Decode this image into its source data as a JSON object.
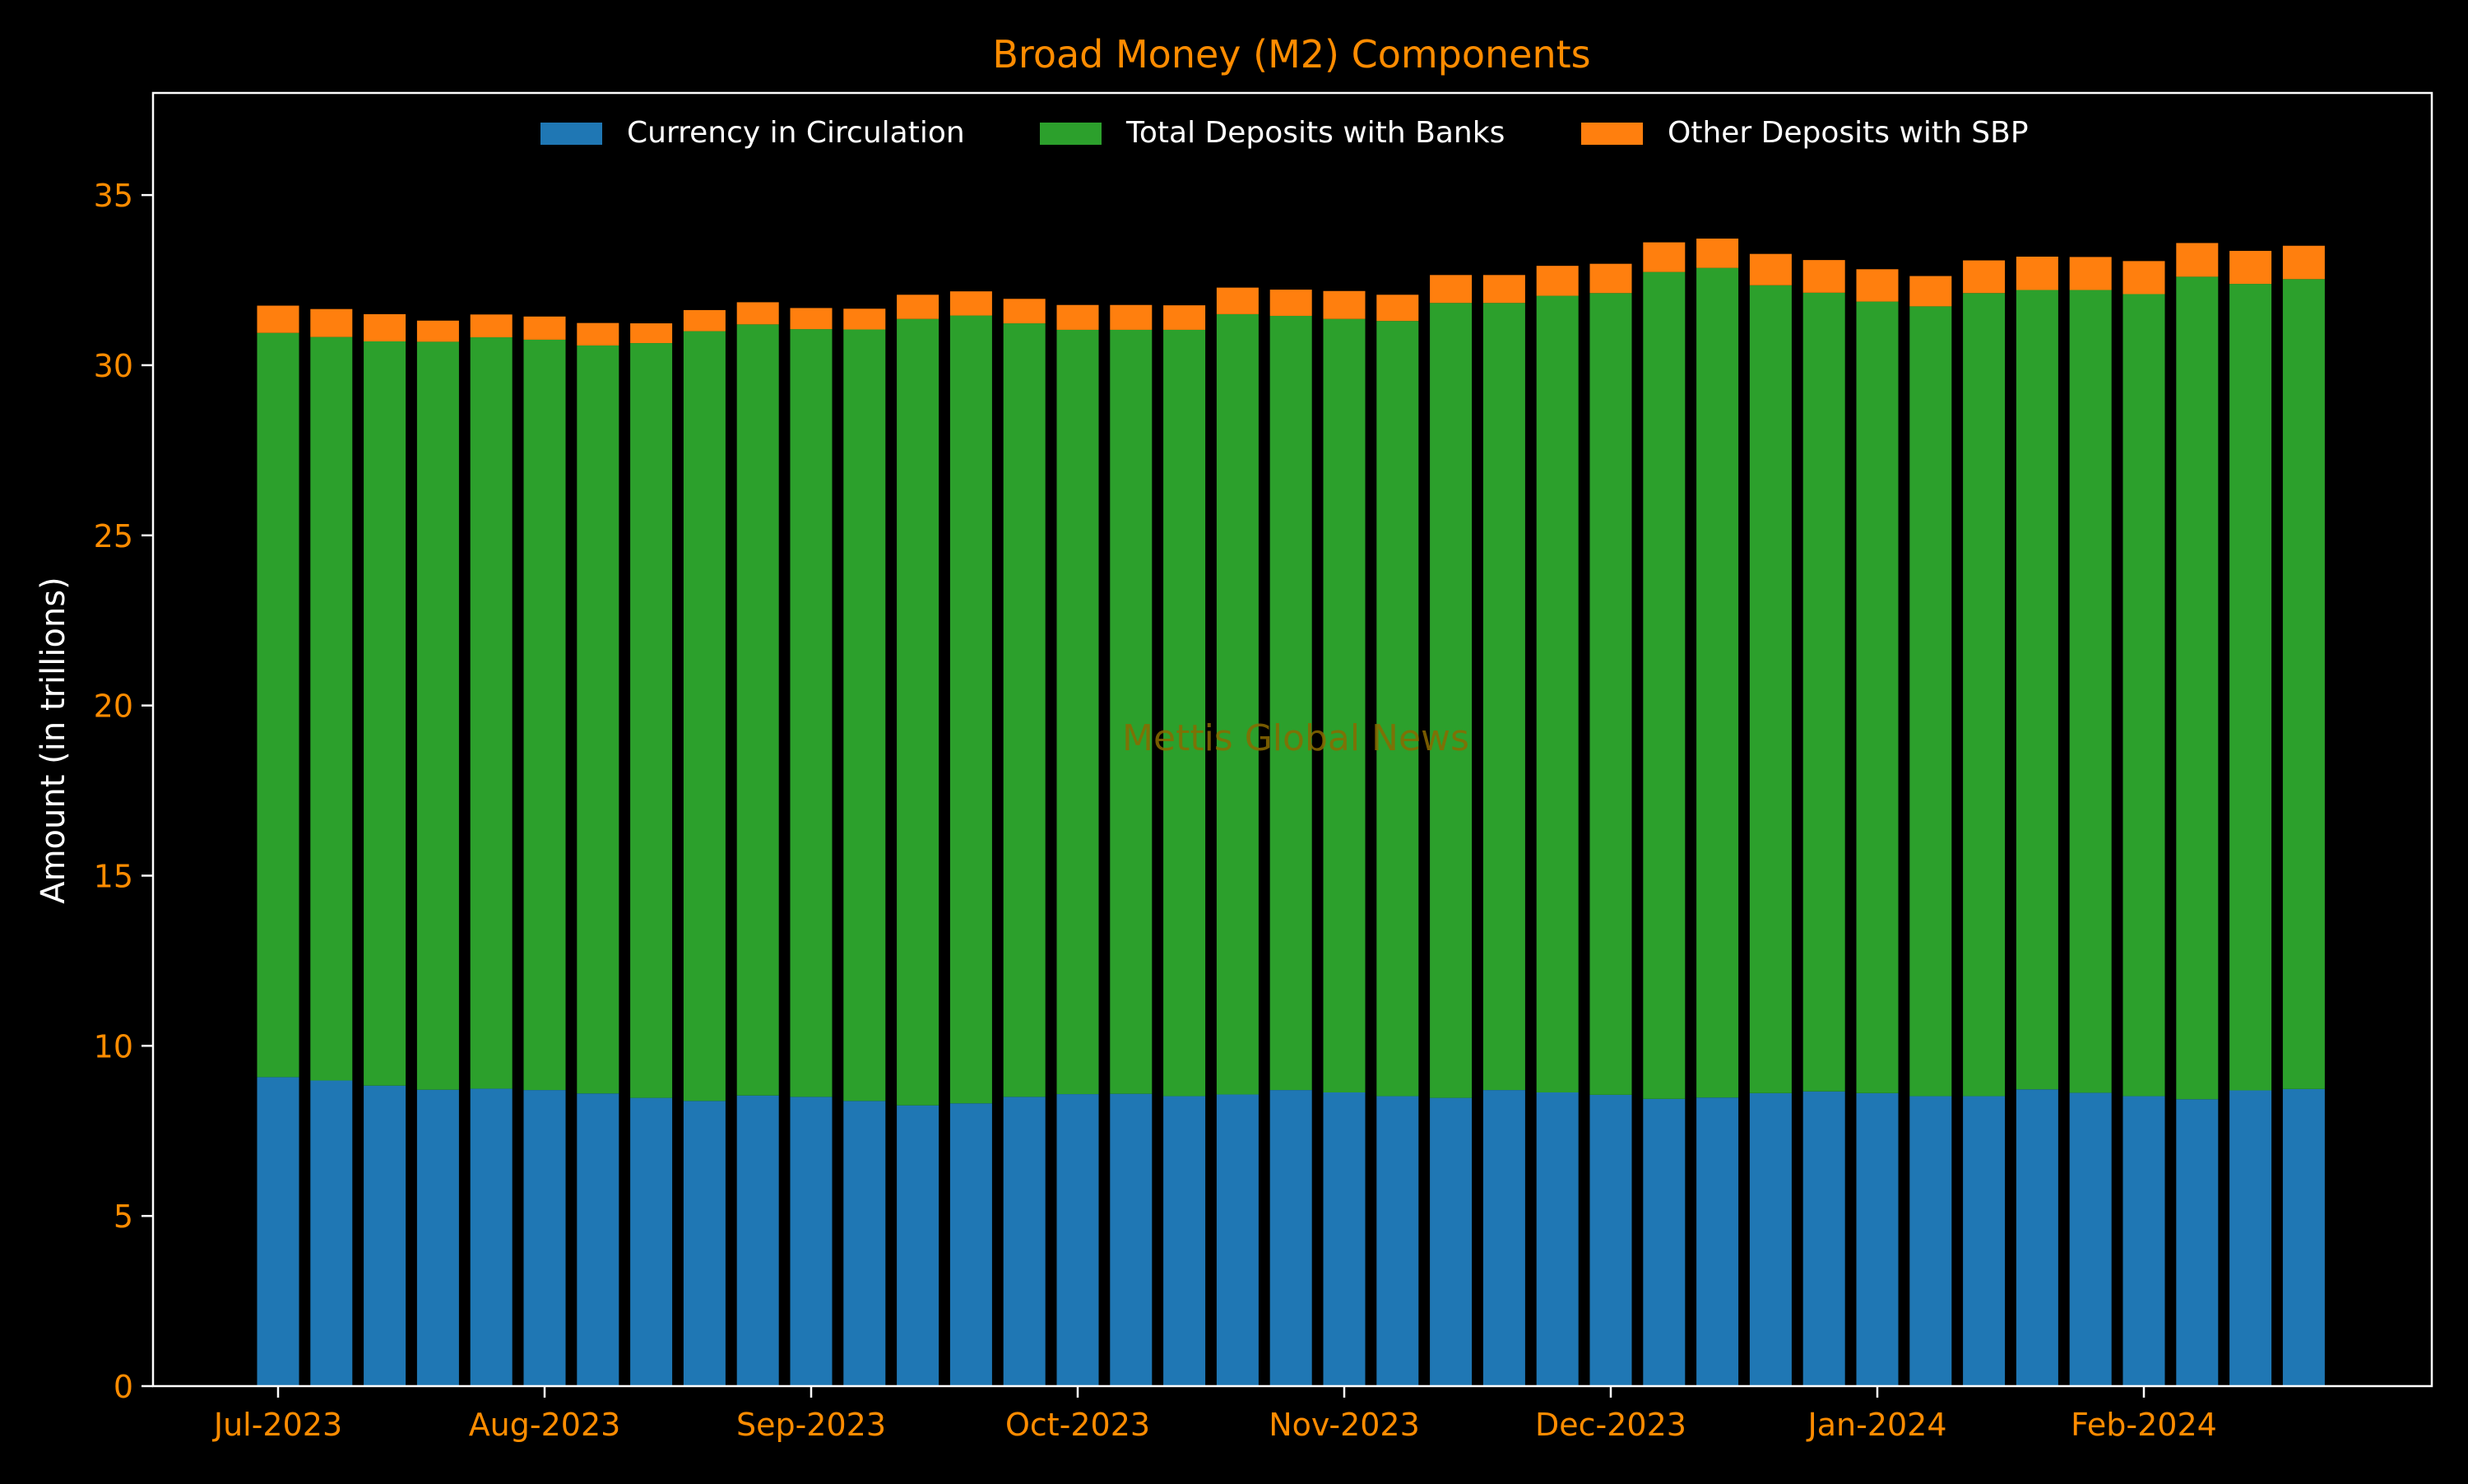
{
  "chart_data": {
    "type": "bar",
    "stacked": true,
    "title": "Broad Money (M2) Components",
    "ylabel": "Amount (in trillions)",
    "xlabel": "",
    "ylim": [
      0,
      38
    ],
    "yticks": [
      0,
      5,
      10,
      15,
      20,
      25,
      30,
      35
    ],
    "xtick_labels": [
      "Jul-2023",
      "Aug-2023",
      "Sep-2023",
      "Oct-2023",
      "Nov-2023",
      "Dec-2023",
      "Jan-2024",
      "Feb-2024"
    ],
    "xtick_bar_index": [
      0,
      5,
      10,
      15,
      20,
      25,
      30,
      35
    ],
    "legend_position": "top-center",
    "grid": false,
    "watermark": "Mettis Global News",
    "colors": {
      "background": "#000000",
      "title": "#FF8C00",
      "tick_labels": "#FF8C00",
      "axis_label": "#FFFFFF",
      "frame": "#FFFFFF",
      "watermark": "#8B6A00"
    },
    "series": [
      {
        "name": "Currency in Circulation",
        "color": "#1F77B4",
        "values": [
          9.08,
          8.98,
          8.83,
          8.71,
          8.74,
          8.7,
          8.6,
          8.47,
          8.38,
          8.54,
          8.5,
          8.38,
          8.25,
          8.31,
          8.5,
          8.58,
          8.59,
          8.52,
          8.57,
          8.7,
          8.63,
          8.52,
          8.47,
          8.7,
          8.63,
          8.56,
          8.44,
          8.48,
          8.61,
          8.66,
          8.61,
          8.52,
          8.52,
          8.72,
          8.62,
          8.52,
          8.43,
          8.69,
          8.73
        ]
      },
      {
        "name": "Total Deposits with Banks",
        "color": "#2CA02C",
        "values": [
          21.87,
          21.85,
          21.87,
          21.98,
          22.08,
          22.05,
          21.98,
          22.18,
          22.62,
          22.66,
          22.56,
          22.67,
          23.11,
          23.15,
          22.73,
          22.46,
          22.45,
          22.52,
          22.93,
          22.75,
          22.73,
          22.78,
          23.36,
          23.13,
          23.41,
          23.56,
          24.3,
          24.38,
          23.74,
          23.47,
          23.26,
          23.21,
          23.6,
          23.49,
          23.59,
          23.57,
          24.17,
          23.7,
          23.8
        ]
      },
      {
        "name": "Other Deposits with SBP",
        "color": "#FF7F0E",
        "values": [
          0.8,
          0.82,
          0.8,
          0.62,
          0.67,
          0.68,
          0.66,
          0.58,
          0.62,
          0.65,
          0.62,
          0.61,
          0.71,
          0.71,
          0.72,
          0.73,
          0.73,
          0.72,
          0.78,
          0.77,
          0.82,
          0.77,
          0.82,
          0.82,
          0.88,
          0.86,
          0.87,
          0.86,
          0.92,
          0.96,
          0.95,
          0.89,
          0.96,
          0.98,
          0.97,
          0.97,
          0.99,
          0.97,
          0.98
        ]
      }
    ]
  }
}
